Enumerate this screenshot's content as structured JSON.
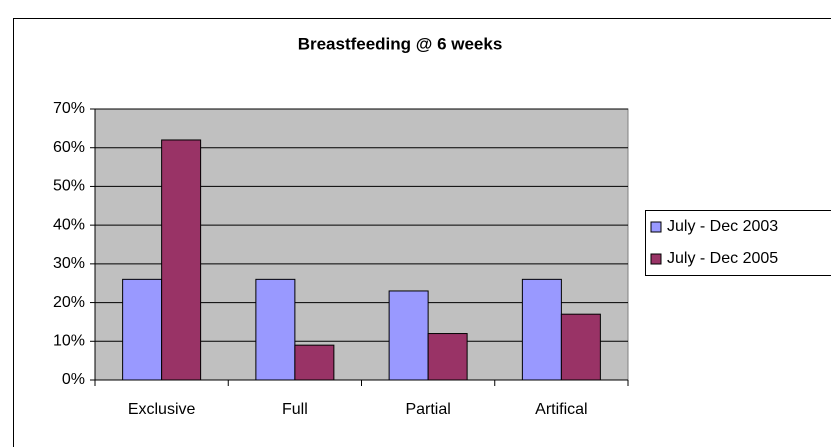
{
  "chart_data": {
    "type": "bar",
    "title": "Breastfeeding @ 6 weeks",
    "categories": [
      "Exclusive",
      "Full",
      "Partial",
      "Artifical"
    ],
    "series": [
      {
        "name": "July - Dec 2003",
        "color": "#9999ff",
        "values": [
          26,
          26,
          23,
          26
        ]
      },
      {
        "name": "July - Dec 2005",
        "color": "#993366",
        "values": [
          62,
          9,
          12,
          17
        ]
      }
    ],
    "ylim": [
      0,
      70
    ],
    "yticks": [
      {
        "value": 0,
        "label": "0%"
      },
      {
        "value": 10,
        "label": "10%"
      },
      {
        "value": 20,
        "label": "20%"
      },
      {
        "value": 30,
        "label": "30%"
      },
      {
        "value": 40,
        "label": "40%"
      },
      {
        "value": 50,
        "label": "50%"
      },
      {
        "value": 60,
        "label": "60%"
      },
      {
        "value": 70,
        "label": "70%"
      }
    ],
    "grid": true,
    "legend": "right"
  }
}
